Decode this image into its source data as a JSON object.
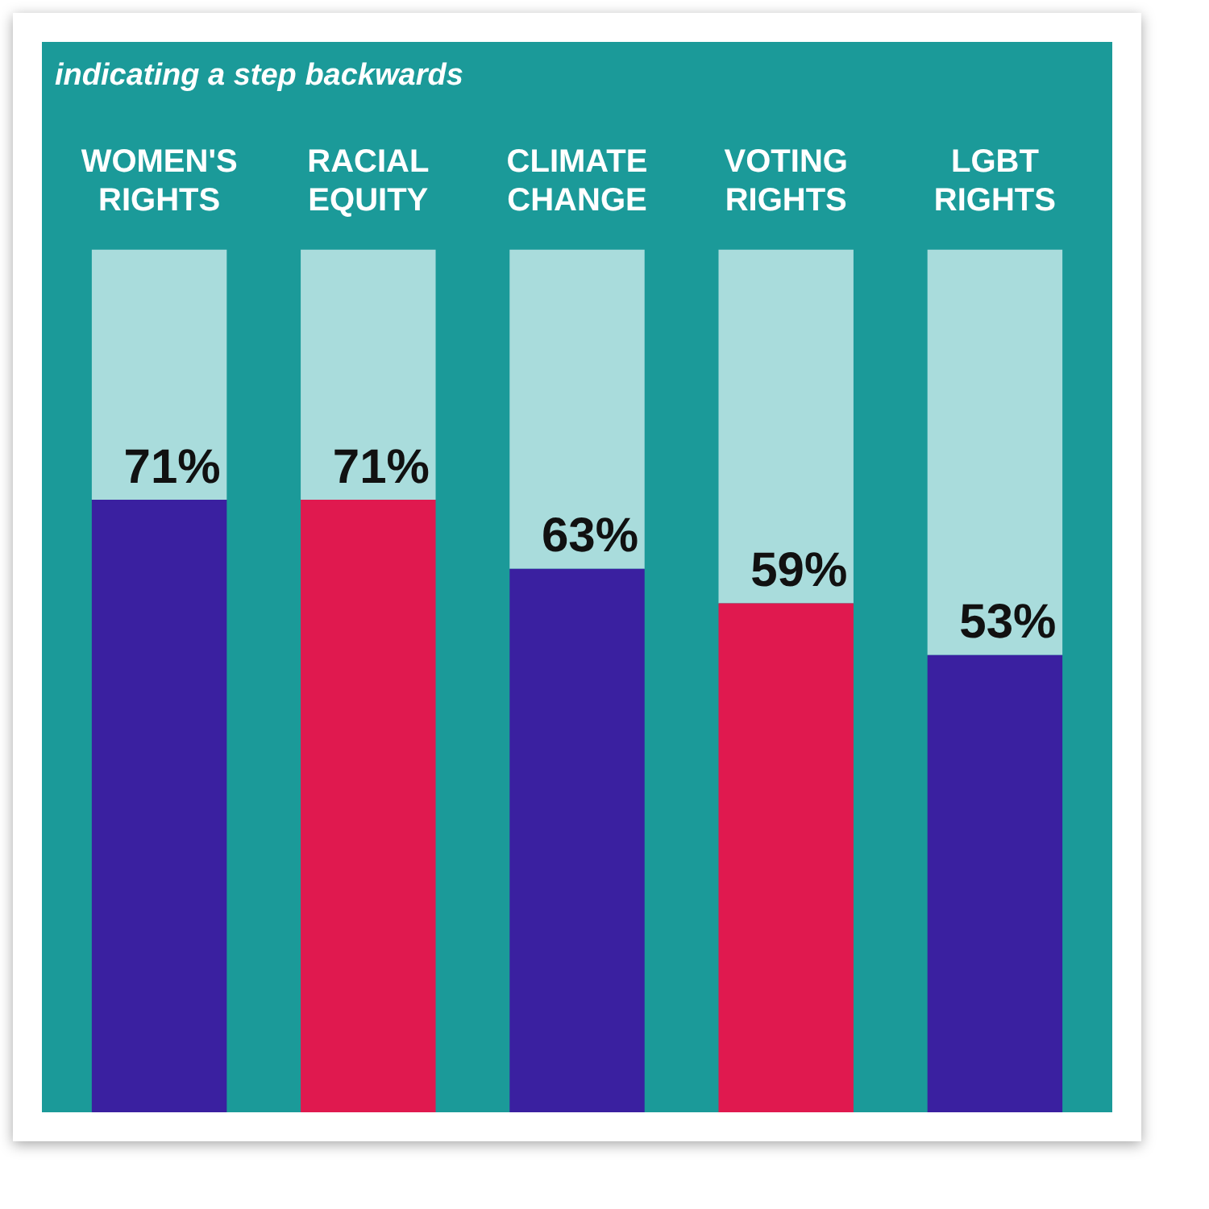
{
  "chart_data": {
    "type": "bar",
    "title": "indicating a step backwards",
    "stacked": true,
    "categories": [
      "WOMEN'S RIGHTS",
      "RACIAL EQUITY",
      "CLIMATE CHANGE",
      "VOTING RIGHTS",
      "LGBT RIGHTS"
    ],
    "series": [
      {
        "colors": [
          "#3a20a0",
          "#e0194f",
          "#3a20a0",
          "#e0194f",
          "#3a20a0"
        ],
        "values": [
          71,
          71,
          63,
          59,
          53
        ],
        "value_labels": [
          "71%",
          "71%",
          "63%",
          "59%",
          "53%"
        ]
      },
      {
        "color": "#a9dcdc",
        "values": [
          29,
          29,
          37,
          41,
          47
        ]
      }
    ],
    "tick_labels": "x",
    "grid": false,
    "legend": false
  }
}
